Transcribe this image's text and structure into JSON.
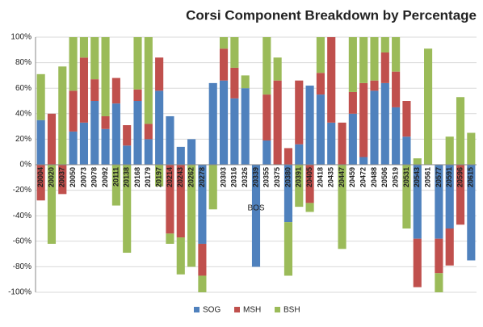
{
  "chart_data": {
    "type": "bar",
    "stacked": true,
    "title": "Corsi Component Breakdown by Percentage",
    "x_label": "BOS",
    "categories": [
      "20004",
      "20020",
      "20037",
      "20050",
      "20073",
      "20078",
      "20092",
      "20111",
      "20138",
      "20168",
      "20179",
      "20197",
      "20214",
      "20243",
      "20262",
      "20278",
      null,
      "20303",
      "20316",
      "20326",
      "20339",
      "20355",
      "20375",
      "20380",
      "20391",
      "20405",
      "20418",
      "20435",
      "20447",
      "20459",
      "20472",
      "20488",
      "20506",
      "20519",
      "20531",
      "20543",
      "20561",
      "20577",
      "20591",
      "20596",
      "20615"
    ],
    "series": [
      {
        "name": "SOG",
        "color": "#4f81bd",
        "values": [
          35,
          0,
          0,
          26,
          33,
          50,
          28,
          48,
          15,
          50,
          20,
          58,
          38,
          14,
          20,
          -62,
          64,
          66,
          52,
          60,
          -80,
          19,
          0,
          -45,
          16,
          62,
          55,
          33,
          0,
          40,
          6,
          58,
          64,
          45,
          22,
          -58,
          0,
          -58,
          -50,
          0,
          -75
        ]
      },
      {
        "name": "MSH",
        "color": "#c0504d",
        "values": [
          -28,
          40,
          -23,
          32,
          51,
          17,
          10,
          20,
          16,
          9,
          12,
          26,
          -54,
          -57,
          0,
          -25,
          0,
          25,
          24,
          0,
          0,
          36,
          66,
          13,
          50,
          -30,
          17,
          67,
          33,
          17,
          58,
          8,
          24,
          28,
          28,
          -38,
          0,
          -27,
          -29,
          -47,
          0
        ]
      },
      {
        "name": "BSH",
        "color": "#9bbb59",
        "values": [
          36,
          -62,
          77,
          42,
          16,
          33,
          62,
          -32,
          -69,
          41,
          68,
          -17,
          -8,
          -29,
          -80,
          -13,
          -35,
          9,
          24,
          10,
          0,
          45,
          18,
          -42,
          -33,
          -7,
          28,
          0,
          -66,
          43,
          36,
          34,
          12,
          27,
          -50,
          5,
          91,
          -15,
          22,
          53,
          25
        ]
      }
    ],
    "ylim": [
      -100,
      100
    ],
    "yticks": [
      {
        "value": -100,
        "label": "-100%"
      },
      {
        "value": -80,
        "label": "-80%"
      },
      {
        "value": -60,
        "label": "-60%"
      },
      {
        "value": -40,
        "label": "-40%"
      },
      {
        "value": -20,
        "label": "-20%"
      },
      {
        "value": 0,
        "label": "0%"
      },
      {
        "value": 20,
        "label": "20%"
      },
      {
        "value": 40,
        "label": "40%"
      },
      {
        "value": 60,
        "label": "60%"
      },
      {
        "value": 80,
        "label": "80%"
      },
      {
        "value": 100,
        "label": "100%"
      }
    ],
    "grid": true,
    "legend": "bottom"
  }
}
